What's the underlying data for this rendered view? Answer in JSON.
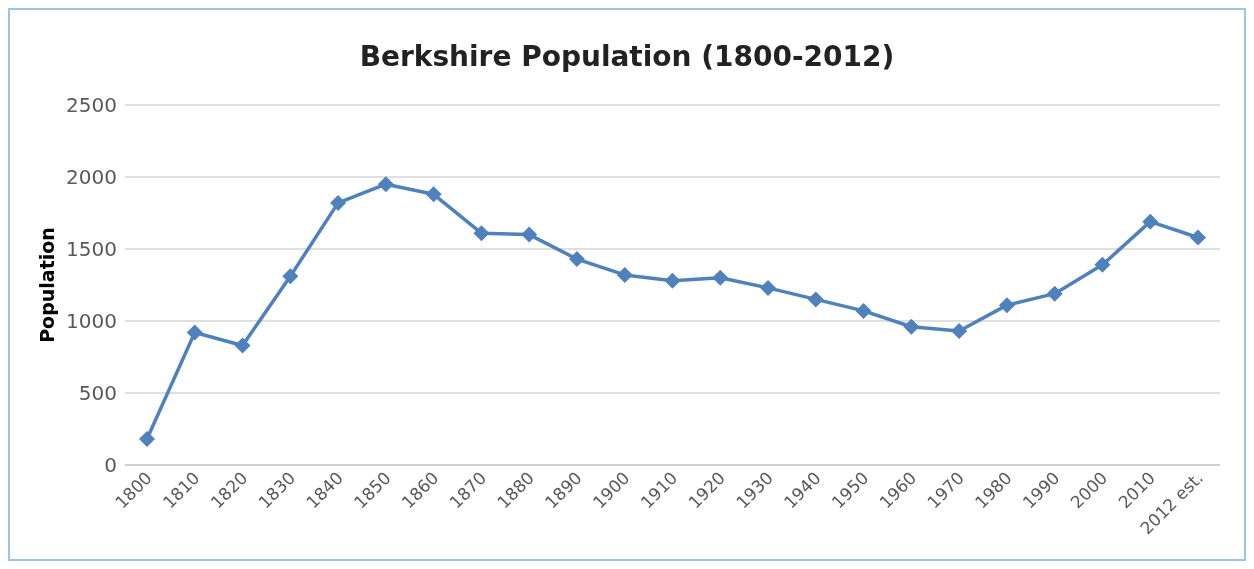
{
  "chart_data": {
    "type": "line",
    "title": "Berkshire Population (1800-2012)",
    "ylabel": "Population",
    "categories": [
      "1800",
      "1810",
      "1820",
      "1830",
      "1840",
      "1850",
      "1860",
      "1870",
      "1880",
      "1890",
      "1900",
      "1910",
      "1920",
      "1930",
      "1940",
      "1950",
      "1960",
      "1970",
      "1980",
      "1990",
      "2000",
      "2010",
      "2012 est."
    ],
    "series": [
      {
        "color": "#4f81bd",
        "values": [
          180,
          920,
          830,
          1310,
          1820,
          1950,
          1880,
          1610,
          1600,
          1430,
          1320,
          1280,
          1300,
          1230,
          1150,
          1070,
          960,
          930,
          1110,
          1190,
          1390,
          1690,
          1580
        ]
      }
    ],
    "ylim": [
      0,
      2500
    ],
    "yticks": [
      0,
      500,
      1000,
      1500,
      2000,
      2500
    ],
    "grid": "y",
    "legend": false,
    "marker": "diamond",
    "line_style": "solid"
  }
}
